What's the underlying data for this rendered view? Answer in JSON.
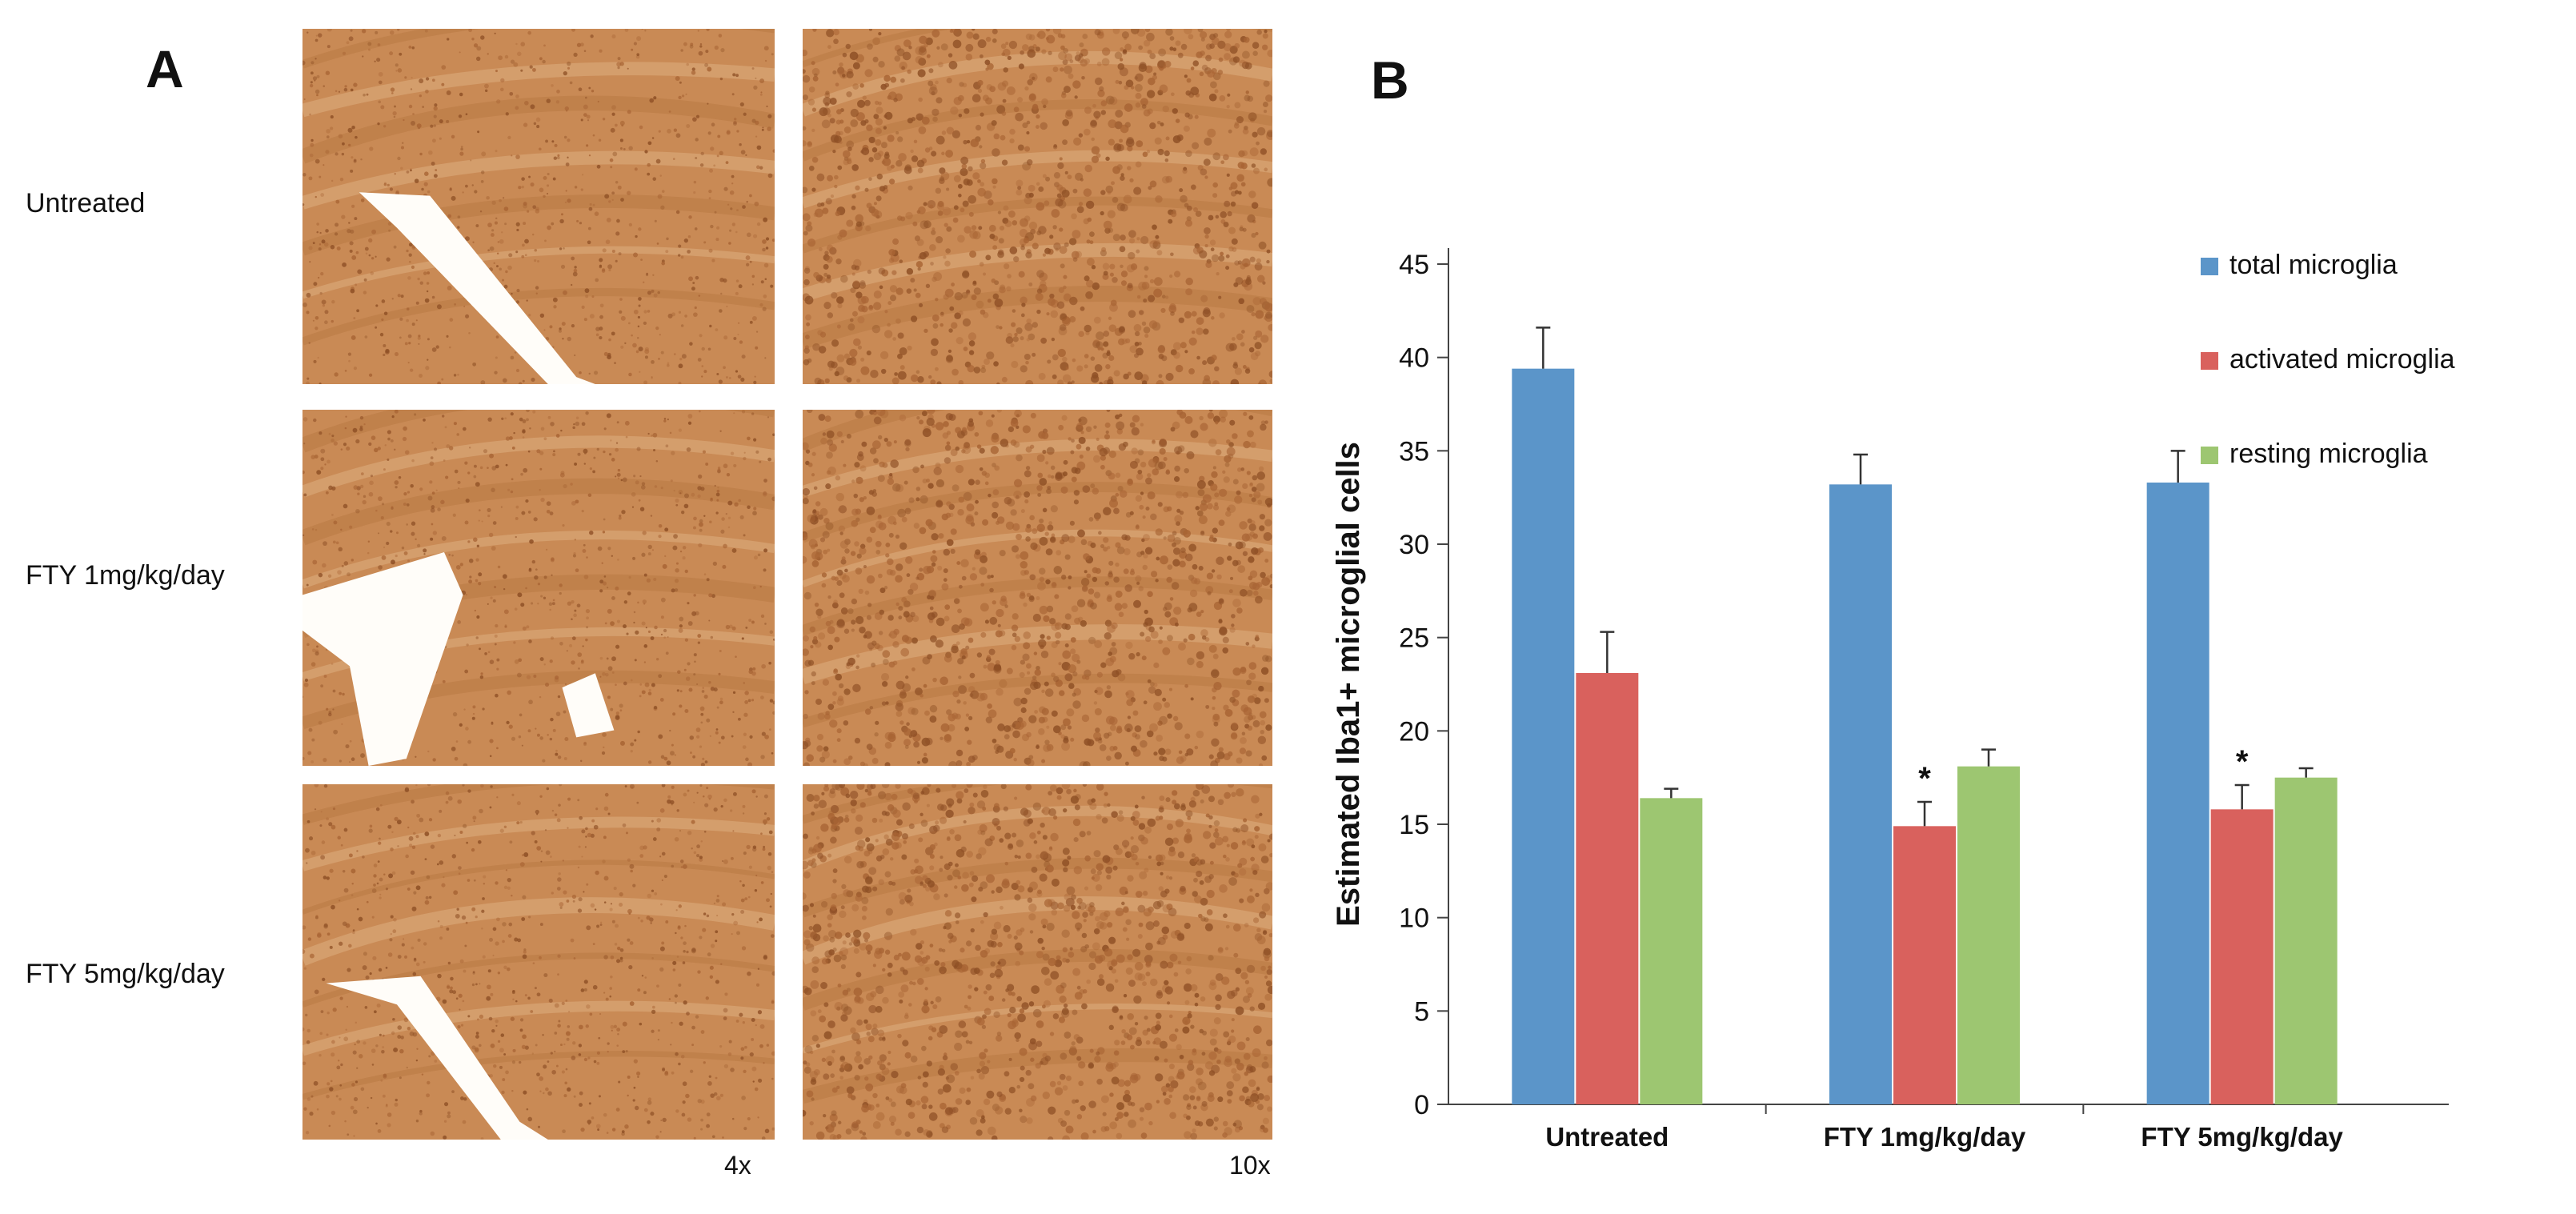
{
  "panel_a": {
    "letter": "A",
    "rows": [
      "Untreated",
      "FTY 1mg/kg/day",
      "FTY 5mg/kg/day"
    ],
    "magnifications": [
      "4x",
      "10x"
    ],
    "image_tint": "#c98a55"
  },
  "panel_b": {
    "letter": "B"
  },
  "chart_data": {
    "type": "bar",
    "ylabel": "Estimated Iba1+ microglial cells",
    "xlabel": "",
    "ylim": [
      0,
      45
    ],
    "yticks": [
      0,
      5,
      10,
      15,
      20,
      25,
      30,
      35,
      40,
      45
    ],
    "categories": [
      "Untreated",
      "FTY 1mg/kg/day",
      "FTY 5mg/kg/day"
    ],
    "series": [
      {
        "name": "total microglia",
        "color": "#5b95c9",
        "values": [
          39.4,
          33.2,
          33.3
        ],
        "errors": [
          2.2,
          1.6,
          1.7
        ]
      },
      {
        "name": "activated microglia",
        "color": "#d9615d",
        "values": [
          23.1,
          14.9,
          15.8
        ],
        "errors": [
          2.2,
          1.3,
          1.3
        ]
      },
      {
        "name": "resting microglia",
        "color": "#9dc671",
        "values": [
          16.4,
          18.1,
          17.5
        ],
        "errors": [
          0.5,
          0.9,
          0.5
        ]
      }
    ],
    "annotations": [
      {
        "text": "*",
        "category": 1,
        "series": 1
      },
      {
        "text": "*",
        "category": 2,
        "series": 1
      }
    ],
    "legend_position": "top-right",
    "grid": false
  }
}
